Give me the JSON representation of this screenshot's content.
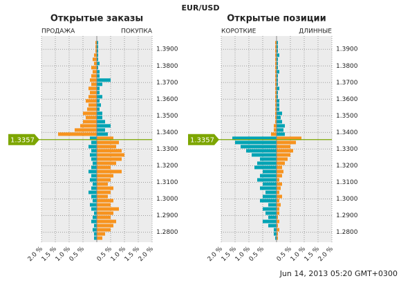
{
  "title": "EUR/USD",
  "timestamp": "Jun 14, 2013 05:20 GMT+0300",
  "current_price": 1.3357,
  "price_levels": [
    1.275,
    1.2775,
    1.28,
    1.2825,
    1.285,
    1.2875,
    1.29,
    1.2925,
    1.295,
    1.2975,
    1.3,
    1.3025,
    1.305,
    1.3075,
    1.31,
    1.3125,
    1.315,
    1.3175,
    1.32,
    1.3225,
    1.325,
    1.3275,
    1.33,
    1.3325,
    1.335,
    1.3375,
    1.34,
    1.3425,
    1.345,
    1.3475,
    1.35,
    1.3525,
    1.355,
    1.3575,
    1.36,
    1.3625,
    1.365,
    1.3675,
    1.37,
    1.3725,
    1.375,
    1.3775,
    1.38,
    1.3825,
    1.385,
    1.3875,
    1.39,
    1.3925
  ],
  "chart_data": [
    {
      "type": "bar",
      "orientation": "horizontal",
      "title": "Открытые заказы",
      "xlim": [
        -2,
        2
      ],
      "ylim": [
        1.274,
        1.398
      ],
      "grid": true,
      "xticks": [
        {
          "value": -2,
          "label": "2.0 %"
        },
        {
          "value": -1.5,
          "label": "1.5 %"
        },
        {
          "value": -1,
          "label": "1.0 %"
        },
        {
          "value": -0.5,
          "label": "0.5 %"
        },
        {
          "value": 0.5,
          "label": "0.5 %"
        },
        {
          "value": 1,
          "label": "1.0 %"
        },
        {
          "value": 1.5,
          "label": "1.5 %"
        },
        {
          "value": 2,
          "label": "2.0 %"
        }
      ],
      "yticks": [
        {
          "value": 1.28,
          "label": "1.2800"
        },
        {
          "value": 1.29,
          "label": "1.2900"
        },
        {
          "value": 1.3,
          "label": "1.3000"
        },
        {
          "value": 1.31,
          "label": "1.3100"
        },
        {
          "value": 1.32,
          "label": "1.3200"
        },
        {
          "value": 1.33,
          "label": "1.3300"
        },
        {
          "value": 1.34,
          "label": "1.3400"
        },
        {
          "value": 1.35,
          "label": "1.3500"
        },
        {
          "value": 1.36,
          "label": "1.3600"
        },
        {
          "value": 1.37,
          "label": "1.3700"
        },
        {
          "value": 1.38,
          "label": "1.3800"
        },
        {
          "value": 1.39,
          "label": "1.3900"
        }
      ],
      "series": [
        {
          "name": "ПРОДАЖА",
          "side": "left",
          "color_above": "#f7931e",
          "color_below": "#00a3b4",
          "values": [
            0.1,
            0.1,
            0.15,
            0.1,
            0.2,
            0.15,
            0.1,
            0.2,
            0.25,
            0.15,
            0.2,
            0.3,
            0.2,
            0.15,
            0.25,
            0.2,
            0.3,
            0.2,
            0.15,
            0.2,
            0.25,
            0.2,
            0.3,
            0.2,
            0.25,
            1.4,
            0.8,
            0.6,
            0.5,
            0.4,
            0.5,
            0.35,
            0.3,
            0.4,
            0.3,
            0.25,
            0.3,
            0.2,
            0.25,
            0.2,
            0.15,
            0.2,
            0.1,
            0.15,
            0.1,
            0.05,
            0.05,
            0.05
          ]
        },
        {
          "name": "ПОКУПКА",
          "side": "right",
          "color_above": "#00a3b4",
          "color_below": "#f7931e",
          "values": [
            0.2,
            0.3,
            0.5,
            0.6,
            0.7,
            0.5,
            0.6,
            0.8,
            0.5,
            0.6,
            0.4,
            0.5,
            0.6,
            0.4,
            0.5,
            0.6,
            0.9,
            0.5,
            0.7,
            0.9,
            1.0,
            0.9,
            0.7,
            0.8,
            0.6,
            0.4,
            0.3,
            0.5,
            0.3,
            0.2,
            0.2,
            0.1,
            0.15,
            0.1,
            0.2,
            0.1,
            0.1,
            0.2,
            0.5,
            0.1,
            0.1,
            0.05,
            0.1,
            0.05,
            0.05,
            0.05,
            0.05,
            0.05
          ]
        }
      ]
    },
    {
      "type": "bar",
      "orientation": "horizontal",
      "title": "Открытые позиции",
      "xlim": [
        -2,
        2
      ],
      "ylim": [
        1.274,
        1.398
      ],
      "grid": true,
      "xticks": [
        {
          "value": -2,
          "label": "2.0 %"
        },
        {
          "value": -1.5,
          "label": "1.5 %"
        },
        {
          "value": -1,
          "label": "1.0 %"
        },
        {
          "value": -0.5,
          "label": "0.5 %"
        },
        {
          "value": 0.5,
          "label": "0.5 %"
        },
        {
          "value": 1,
          "label": "1.0 %"
        },
        {
          "value": 1.5,
          "label": "1.5 %"
        },
        {
          "value": 2,
          "label": "2.0 %"
        }
      ],
      "yticks": [
        {
          "value": 1.28,
          "label": "1.2800"
        },
        {
          "value": 1.29,
          "label": "1.2900"
        },
        {
          "value": 1.3,
          "label": "1.3000"
        },
        {
          "value": 1.31,
          "label": "1.3100"
        },
        {
          "value": 1.32,
          "label": "1.3200"
        },
        {
          "value": 1.33,
          "label": "1.3300"
        },
        {
          "value": 1.34,
          "label": "1.3400"
        },
        {
          "value": 1.35,
          "label": "1.3500"
        },
        {
          "value": 1.36,
          "label": "1.3600"
        },
        {
          "value": 1.37,
          "label": "1.3700"
        },
        {
          "value": 1.38,
          "label": "1.3800"
        },
        {
          "value": 1.39,
          "label": "1.3900"
        }
      ],
      "series": [
        {
          "name": "КОРОТКИЕ",
          "side": "left",
          "color_above": "#f7931e",
          "color_below": "#00a3b4",
          "values": [
            0.05,
            0.1,
            0.1,
            0.3,
            0.5,
            0.3,
            0.4,
            0.5,
            0.3,
            0.6,
            0.5,
            0.4,
            0.6,
            0.5,
            0.7,
            0.6,
            0.5,
            0.8,
            0.7,
            0.6,
            0.9,
            1.1,
            1.3,
            1.5,
            1.6,
            0.2,
            0.1,
            0.1,
            0.05,
            0.05,
            0.05,
            0.05,
            0.05,
            0.05,
            0.05,
            0.05,
            0.05,
            0.05,
            0.05,
            0.05,
            0.05,
            0.05,
            0.05,
            0.05,
            0.05,
            0.05,
            0.05,
            0.05
          ]
        },
        {
          "name": "ДЛИННЫЕ",
          "side": "right",
          "color_above": "#00a3b4",
          "color_below": "#f7931e",
          "values": [
            0.05,
            0.05,
            0.1,
            0.05,
            0.1,
            0.05,
            0.1,
            0.1,
            0.15,
            0.1,
            0.2,
            0.1,
            0.15,
            0.2,
            0.1,
            0.2,
            0.25,
            0.2,
            0.3,
            0.4,
            0.5,
            0.6,
            0.5,
            0.7,
            0.9,
            0.3,
            0.25,
            0.3,
            0.2,
            0.15,
            0.2,
            0.1,
            0.1,
            0.1,
            0.05,
            0.05,
            0.1,
            0.05,
            0.05,
            0.05,
            0.1,
            0.05,
            0.05,
            0.05,
            0.1,
            0.05,
            0.05,
            0.05
          ]
        }
      ]
    }
  ]
}
